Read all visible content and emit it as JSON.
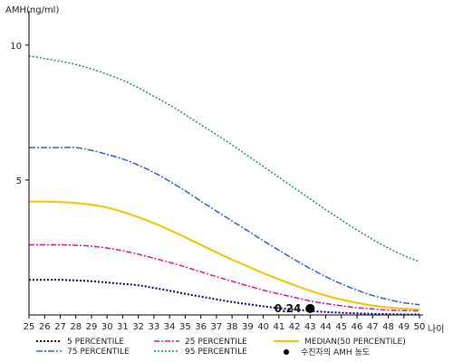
{
  "chart_data": {
    "type": "line",
    "ylabel": "AMH(ng/ml)",
    "xlabel": "나이",
    "x": [
      25,
      26,
      27,
      28,
      29,
      30,
      31,
      32,
      33,
      34,
      35,
      36,
      37,
      38,
      39,
      40,
      41,
      42,
      43,
      44,
      45,
      46,
      47,
      48,
      49,
      50
    ],
    "xlim": [
      25,
      50
    ],
    "ylim": [
      0,
      11
    ],
    "yticks": [
      5,
      10
    ],
    "grid": false,
    "legend_position": "bottom",
    "series": [
      {
        "name": "5 PERCENTILE",
        "color": "#000080",
        "dash": "2,2",
        "width": 2,
        "values": [
          1.3,
          1.3,
          1.3,
          1.28,
          1.25,
          1.2,
          1.15,
          1.1,
          1.0,
          0.9,
          0.78,
          0.68,
          0.58,
          0.48,
          0.4,
          0.32,
          0.25,
          0.2,
          0.15,
          0.11,
          0.08,
          0.06,
          0.04,
          0.03,
          0.02,
          0.02
        ]
      },
      {
        "name": "25 PERCENTILE",
        "color": "#e0138c",
        "dash": "6,2,2,2",
        "width": 1.5,
        "values": [
          2.6,
          2.6,
          2.6,
          2.58,
          2.55,
          2.48,
          2.38,
          2.25,
          2.1,
          1.95,
          1.78,
          1.6,
          1.42,
          1.25,
          1.08,
          0.92,
          0.78,
          0.65,
          0.52,
          0.42,
          0.34,
          0.27,
          0.22,
          0.18,
          0.16,
          0.15
        ]
      },
      {
        "name": "MEDIAN(50 PERCENTILE)",
        "color": "#f2c300",
        "dash": "",
        "width": 2,
        "values": [
          4.2,
          4.2,
          4.18,
          4.15,
          4.08,
          3.98,
          3.82,
          3.62,
          3.4,
          3.15,
          2.88,
          2.6,
          2.32,
          2.05,
          1.8,
          1.55,
          1.32,
          1.1,
          0.9,
          0.72,
          0.57,
          0.45,
          0.35,
          0.28,
          0.23,
          0.2
        ]
      },
      {
        "name": "75 PERCENTILE",
        "color": "#3a5ac8",
        "dash": "7,2,2,2",
        "width": 1.5,
        "values": [
          6.2,
          6.2,
          6.2,
          6.2,
          6.1,
          5.95,
          5.78,
          5.55,
          5.28,
          4.95,
          4.6,
          4.22,
          3.85,
          3.48,
          3.12,
          2.75,
          2.4,
          2.05,
          1.72,
          1.42,
          1.15,
          0.92,
          0.72,
          0.57,
          0.45,
          0.38
        ]
      },
      {
        "name": "95 PERCENTILE",
        "color": "#2e8b57",
        "dash": "2,2",
        "width": 1.5,
        "values": [
          9.6,
          9.5,
          9.4,
          9.28,
          9.12,
          8.92,
          8.7,
          8.42,
          8.1,
          7.78,
          7.42,
          7.05,
          6.68,
          6.3,
          5.9,
          5.5,
          5.1,
          4.7,
          4.3,
          3.9,
          3.52,
          3.15,
          2.8,
          2.48,
          2.2,
          1.98
        ]
      }
    ],
    "marker": {
      "name": "수진자의 AMH 농도",
      "x": 43,
      "y": 0.24,
      "label": "0.24",
      "color": "#000000"
    }
  }
}
